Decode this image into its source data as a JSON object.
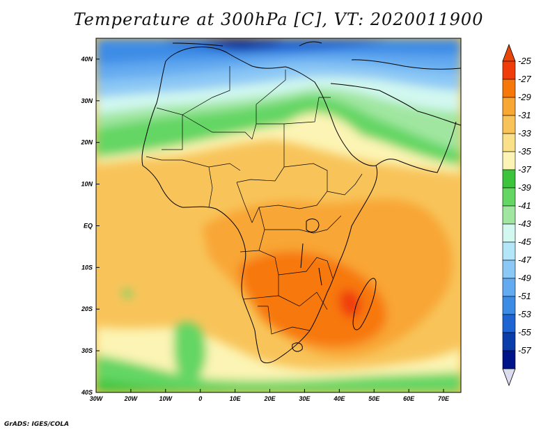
{
  "title": "Temperature at 300hPa [C], VT: 2020011900",
  "credit": "GrADS: IGES/COLA",
  "map": {
    "projection": "lat-lon",
    "lon_range": [
      -30,
      75
    ],
    "lat_range": [
      -40,
      45
    ],
    "lon_ticks": [
      {
        "value": -30,
        "label": "30W"
      },
      {
        "value": -20,
        "label": "20W"
      },
      {
        "value": -10,
        "label": "10W"
      },
      {
        "value": 0,
        "label": "0"
      },
      {
        "value": 10,
        "label": "10E"
      },
      {
        "value": 20,
        "label": "20E"
      },
      {
        "value": 30,
        "label": "30E"
      },
      {
        "value": 40,
        "label": "40E"
      },
      {
        "value": 50,
        "label": "50E"
      },
      {
        "value": 60,
        "label": "60E"
      },
      {
        "value": 70,
        "label": "70E"
      }
    ],
    "lat_ticks": [
      {
        "value": 40,
        "label": "40N"
      },
      {
        "value": 30,
        "label": "30N"
      },
      {
        "value": 20,
        "label": "20N"
      },
      {
        "value": 10,
        "label": "10N"
      },
      {
        "value": 0,
        "label": "EQ"
      },
      {
        "value": -10,
        "label": "10S"
      },
      {
        "value": -20,
        "label": "20S"
      },
      {
        "value": -30,
        "label": "30S"
      },
      {
        "value": -40,
        "label": "40S"
      }
    ]
  },
  "colorbar": {
    "labels": [
      "-25",
      "-27",
      "-29",
      "-31",
      "-33",
      "-35",
      "-37",
      "-39",
      "-41",
      "-43",
      "-45",
      "-47",
      "-49",
      "-51",
      "-53",
      "-55",
      "-57"
    ],
    "colors": [
      "#f03c0a",
      "#f7780a",
      "#f8a634",
      "#f8c45a",
      "#fbe08a",
      "#fcf4b4",
      "#3cc43c",
      "#64d664",
      "#a0e6a0",
      "#d2f8f0",
      "#b4e6fa",
      "#8cc8f5",
      "#64aaf0",
      "#3c8ce6",
      "#1e64d2",
      "#0a3caa",
      "#00148a"
    ],
    "top_color": "#e6460a",
    "bottom_color": "#dcdcf0"
  }
}
